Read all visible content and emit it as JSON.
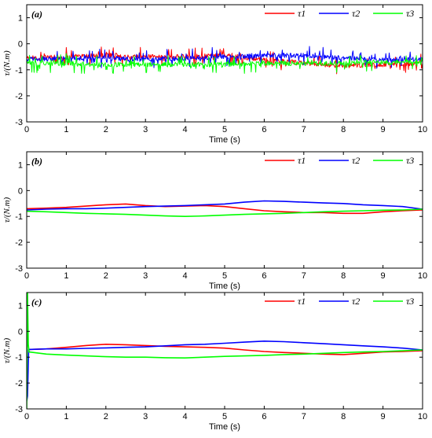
{
  "chart_data": [
    {
      "type": "line",
      "panel_label": "(a)",
      "xlabel": "Time (s)",
      "ylabel": "τ/(N.m)",
      "xlim": [
        0,
        10
      ],
      "ylim": [
        -3,
        1.5
      ],
      "xticks": [
        "0",
        "1",
        "2",
        "3",
        "4",
        "5",
        "6",
        "7",
        "8",
        "9",
        "10"
      ],
      "yticks": [
        "-3",
        "-2",
        "-1",
        "0",
        "1"
      ],
      "legend_position": "top-right",
      "line_width": 1,
      "noisy": true,
      "series": [
        {
          "name": "τ1",
          "color": "#ff0000",
          "x": [
            0,
            1,
            2,
            3,
            4,
            5,
            6,
            7,
            8,
            9,
            10
          ],
          "y": [
            -0.55,
            -0.5,
            -0.45,
            -0.5,
            -0.5,
            -0.45,
            -0.6,
            -0.75,
            -0.85,
            -0.8,
            -0.75
          ]
        },
        {
          "name": "τ2",
          "color": "#0000ff",
          "x": [
            0,
            1,
            2,
            3,
            4,
            5,
            6,
            7,
            8,
            9,
            10
          ],
          "y": [
            -0.6,
            -0.55,
            -0.55,
            -0.6,
            -0.55,
            -0.5,
            -0.45,
            -0.45,
            -0.55,
            -0.6,
            -0.6
          ]
        },
        {
          "name": "τ3",
          "color": "#00ff00",
          "x": [
            0,
            1,
            2,
            3,
            4,
            5,
            6,
            7,
            8,
            9,
            10
          ],
          "y": [
            -0.75,
            -0.75,
            -0.8,
            -0.8,
            -0.8,
            -0.8,
            -0.75,
            -0.75,
            -0.75,
            -0.7,
            -0.7
          ]
        }
      ]
    },
    {
      "type": "line",
      "panel_label": "(b)",
      "xlabel": "Time (s)",
      "ylabel": "τ/(N.m)",
      "xlim": [
        0,
        10
      ],
      "ylim": [
        -3,
        1.5
      ],
      "xticks": [
        "0",
        "1",
        "2",
        "3",
        "4",
        "5",
        "6",
        "7",
        "8",
        "9",
        "10"
      ],
      "yticks": [
        "-3",
        "-2",
        "-1",
        "0",
        "1"
      ],
      "legend_position": "top-right",
      "line_width": 1.6,
      "noisy": false,
      "series": [
        {
          "name": "τ1",
          "color": "#ff0000",
          "x": [
            0,
            0.5,
            1,
            1.5,
            2,
            2.5,
            3,
            3.5,
            4,
            4.5,
            5,
            5.5,
            6,
            6.5,
            7,
            7.5,
            8,
            8.5,
            9,
            9.5,
            10
          ],
          "y": [
            -0.7,
            -0.68,
            -0.65,
            -0.6,
            -0.55,
            -0.52,
            -0.58,
            -0.62,
            -0.6,
            -0.58,
            -0.62,
            -0.7,
            -0.78,
            -0.82,
            -0.85,
            -0.85,
            -0.88,
            -0.88,
            -0.82,
            -0.78,
            -0.75
          ]
        },
        {
          "name": "τ2",
          "color": "#0000ff",
          "x": [
            0,
            0.5,
            1,
            1.5,
            2,
            2.5,
            3,
            3.5,
            4,
            4.5,
            5,
            5.5,
            6,
            6.5,
            7,
            7.5,
            8,
            8.5,
            9,
            9.5,
            10
          ],
          "y": [
            -0.75,
            -0.72,
            -0.7,
            -0.7,
            -0.68,
            -0.65,
            -0.62,
            -0.6,
            -0.58,
            -0.55,
            -0.52,
            -0.45,
            -0.4,
            -0.42,
            -0.45,
            -0.48,
            -0.5,
            -0.55,
            -0.58,
            -0.62,
            -0.72
          ]
        },
        {
          "name": "τ3",
          "color": "#00ff00",
          "x": [
            0,
            0.5,
            1,
            1.5,
            2,
            2.5,
            3,
            3.5,
            4,
            4.5,
            5,
            5.5,
            6,
            6.5,
            7,
            7.5,
            8,
            8.5,
            9,
            9.5,
            10
          ],
          "y": [
            -0.8,
            -0.82,
            -0.85,
            -0.88,
            -0.9,
            -0.92,
            -0.95,
            -0.98,
            -1.0,
            -0.98,
            -0.95,
            -0.92,
            -0.9,
            -0.88,
            -0.85,
            -0.82,
            -0.8,
            -0.78,
            -0.76,
            -0.75,
            -0.72
          ]
        }
      ]
    },
    {
      "type": "line",
      "panel_label": "(c)",
      "xlabel": "Time (s)",
      "ylabel": "τ/(N.m)",
      "xlim": [
        0,
        10
      ],
      "ylim": [
        -3,
        1.5
      ],
      "xticks": [
        "0",
        "1",
        "2",
        "3",
        "4",
        "5",
        "6",
        "7",
        "8",
        "9",
        "10"
      ],
      "yticks": [
        "-3",
        "-2",
        "-1",
        "0",
        "1"
      ],
      "legend_position": "top-right",
      "line_width": 1.6,
      "noisy": false,
      "series": [
        {
          "name": "τ1",
          "color": "#ff0000",
          "x": [
            0.05,
            0.5,
            1,
            1.5,
            2,
            2.5,
            3,
            3.5,
            4,
            4.5,
            5,
            5.5,
            6,
            6.5,
            7,
            7.5,
            8,
            8.5,
            9,
            9.5,
            10
          ],
          "y": [
            -0.7,
            -0.68,
            -0.62,
            -0.55,
            -0.5,
            -0.52,
            -0.55,
            -0.58,
            -0.6,
            -0.62,
            -0.65,
            -0.72,
            -0.78,
            -0.82,
            -0.85,
            -0.88,
            -0.9,
            -0.85,
            -0.8,
            -0.78,
            -0.75
          ]
        },
        {
          "name": "τ2",
          "color": "#0000ff",
          "x": [
            0,
            0.02,
            0.05,
            0.5,
            1,
            1.5,
            2,
            2.5,
            3,
            3.5,
            4,
            4.5,
            5,
            5.5,
            6,
            6.5,
            7,
            7.5,
            8,
            8.5,
            9,
            9.5,
            10
          ],
          "y": [
            -2.7,
            -2.5,
            -0.7,
            -0.68,
            -0.68,
            -0.66,
            -0.64,
            -0.62,
            -0.6,
            -0.56,
            -0.52,
            -0.5,
            -0.46,
            -0.42,
            -0.38,
            -0.4,
            -0.44,
            -0.48,
            -0.52,
            -0.56,
            -0.6,
            -0.65,
            -0.72
          ]
        },
        {
          "name": "τ3",
          "color": "#00ff00",
          "x": [
            0,
            0.02,
            0.04,
            0.06,
            0.5,
            1,
            1.5,
            2,
            2.5,
            3,
            3.5,
            4,
            4.5,
            5,
            5.5,
            6,
            6.5,
            7,
            7.5,
            8,
            8.5,
            9,
            9.5,
            10
          ],
          "y": [
            -3.0,
            1.5,
            -0.5,
            -0.8,
            -0.88,
            -0.92,
            -0.95,
            -0.98,
            -1.0,
            -1.0,
            -1.02,
            -1.03,
            -1.0,
            -0.97,
            -0.95,
            -0.93,
            -0.9,
            -0.88,
            -0.85,
            -0.82,
            -0.8,
            -0.78,
            -0.75,
            -0.72
          ]
        }
      ]
    }
  ]
}
